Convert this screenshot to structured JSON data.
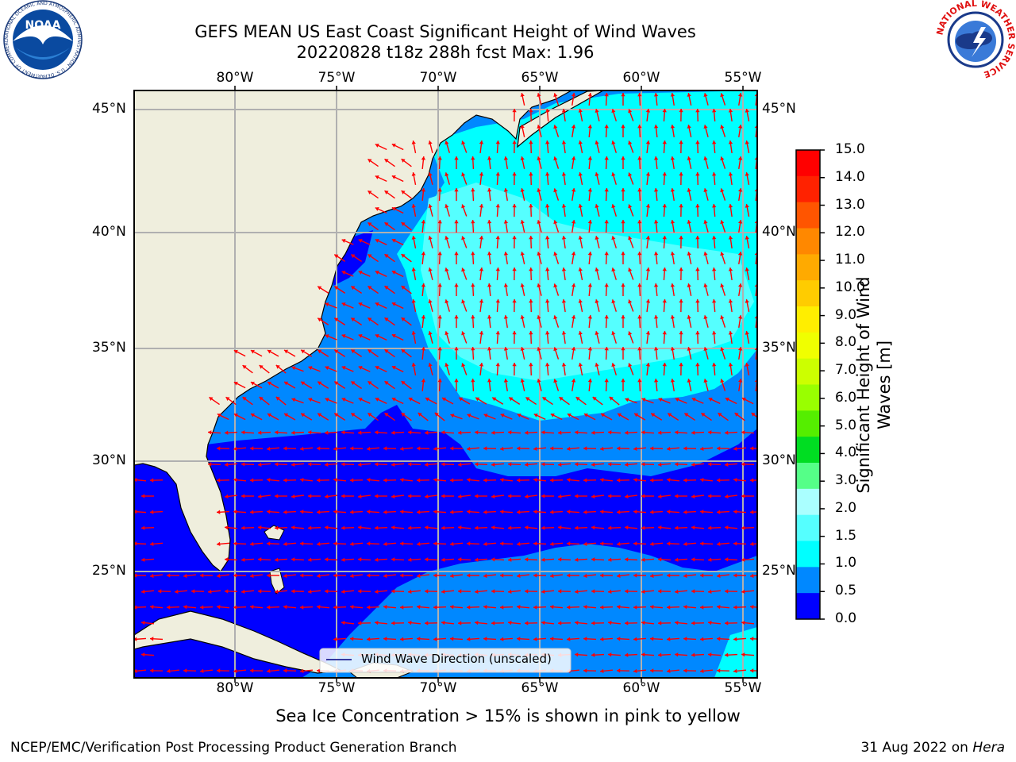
{
  "title_line1": "GEFS MEAN US East Coast Significant Height of Wind Waves",
  "title_line2": "20220828 t18z 288h fcst   Max: 1.96",
  "lon_labels": [
    "80°W",
    "75°W",
    "70°W",
    "65°W",
    "60°W",
    "55°W"
  ],
  "lat_labels": [
    "45°N",
    "40°N",
    "35°N",
    "30°N",
    "25°N"
  ],
  "legend_label": "Wind Wave Direction (unscaled)",
  "colorbar": {
    "label_line1": "Significant Height of Wind",
    "label_line2": "Waves [m]",
    "ticks": [
      "15.0",
      "14.0",
      "13.0",
      "12.0",
      "11.0",
      "10.0",
      "9.0",
      "8.0",
      "7.0",
      "6.0",
      "5.0",
      "4.0",
      "3.0",
      "2.0",
      "1.5",
      "1.0",
      "0.5",
      "0.0"
    ],
    "colors": [
      "#ff0000",
      "#ff2200",
      "#ff5500",
      "#ff8800",
      "#ffaa00",
      "#ffcc00",
      "#ffee00",
      "#f0ff00",
      "#ccff00",
      "#99ff00",
      "#55ee00",
      "#00dd22",
      "#55ff88",
      "#aaffff",
      "#55ffff",
      "#00ffff",
      "#0088ff",
      "#0000ff"
    ]
  },
  "map_colors": {
    "land": "#efeedd",
    "wave_0_05": "#0000ff",
    "wave_05_10": "#0088ff",
    "wave_10_15": "#00ffff",
    "wave_15_20": "#55ffff",
    "arrow": "#ff0000",
    "grid": "#b0b0b0"
  },
  "sea_ice_note": "Sea Ice Concentration > 15% is shown in pink to yellow",
  "footer_left": "NCEP/EMC/Verification Post Processing Product Generation Branch",
  "footer_date": "31 Aug 2022 on",
  "footer_host": "Hera",
  "noaa_logo_text": "NOAA",
  "noaa_ring_text": "NATIONAL OCEANIC AND ATMOSPHERIC ADMINISTRATION · U.S. DEPARTMENT OF COMMERCE",
  "nws_ring_text": "NATIONAL WEATHER SERVICE"
}
